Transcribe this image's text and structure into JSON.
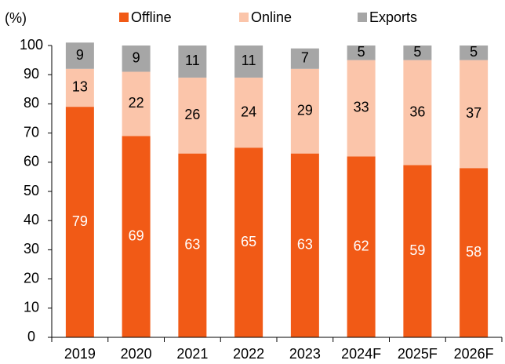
{
  "chart_data": {
    "type": "stacked_bar",
    "y_label": "(%)",
    "categories": [
      "2019",
      "2020",
      "2021",
      "2022",
      "2023",
      "2024F",
      "2025F",
      "2026F"
    ],
    "series": [
      {
        "name": "Offline",
        "color": "#f15a16",
        "label_color": "#ffffff",
        "values": [
          79,
          69,
          63,
          65,
          63,
          62,
          59,
          58
        ]
      },
      {
        "name": "Online",
        "color": "#fbc5aa",
        "label_color": "#000000",
        "values": [
          13,
          22,
          26,
          24,
          29,
          33,
          36,
          37
        ]
      },
      {
        "name": "Exports",
        "color": "#a6a6a6",
        "label_color": "#000000",
        "values": [
          9,
          9,
          11,
          11,
          7,
          5,
          5,
          5
        ]
      }
    ],
    "ylim": [
      0,
      100
    ],
    "yticks": [
      0,
      10,
      20,
      30,
      40,
      50,
      60,
      70,
      80,
      90,
      100
    ],
    "legend": "top"
  }
}
